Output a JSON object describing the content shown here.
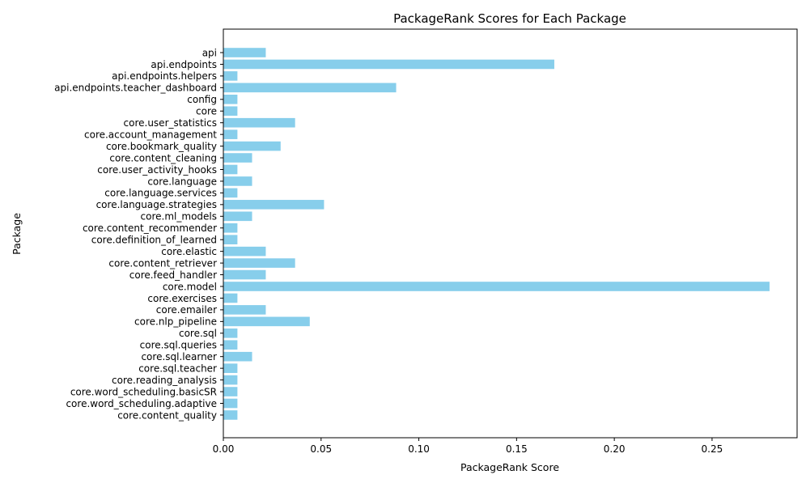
{
  "chart_data": {
    "type": "bar",
    "orientation": "horizontal",
    "title": "PackageRank Scores for Each Package",
    "xlabel": "PackageRank Score",
    "ylabel": "Package",
    "xlim": [
      0,
      0.2935
    ],
    "xticks": [
      0.0,
      0.05,
      0.1,
      0.15,
      0.2,
      0.25
    ],
    "xtick_labels": [
      "0.00",
      "0.05",
      "0.10",
      "0.15",
      "0.20",
      "0.25"
    ],
    "grid": false,
    "bar_color": "#87CEEB",
    "categories": [
      "api",
      "api.endpoints",
      "api.endpoints.helpers",
      "api.endpoints.teacher_dashboard",
      "config",
      "core",
      "core.user_statistics",
      "core.account_management",
      "core.bookmark_quality",
      "core.content_cleaning",
      "core.user_activity_hooks",
      "core.language",
      "core.language.services",
      "core.language.strategies",
      "core.ml_models",
      "core.content_recommender",
      "core.definition_of_learned",
      "core.elastic",
      "core.content_retriever",
      "core.feed_handler",
      "core.model",
      "core.exercises",
      "core.emailer",
      "core.nlp_pipeline",
      "core.sql",
      "core.sql.queries",
      "core.sql.learner",
      "core.sql.teacher",
      "core.reading_analysis",
      "core.word_scheduling.basicSR",
      "core.word_scheduling.adaptive",
      "core.content_quality"
    ],
    "values": [
      0.0217,
      0.1693,
      0.0072,
      0.0884,
      0.0072,
      0.0072,
      0.0367,
      0.0072,
      0.0293,
      0.0147,
      0.0072,
      0.0147,
      0.0072,
      0.0515,
      0.0147,
      0.0072,
      0.0072,
      0.0217,
      0.0367,
      0.0217,
      0.2794,
      0.0072,
      0.0217,
      0.0442,
      0.0072,
      0.0072,
      0.0147,
      0.0072,
      0.0072,
      0.0072,
      0.0072,
      0.0072
    ]
  }
}
